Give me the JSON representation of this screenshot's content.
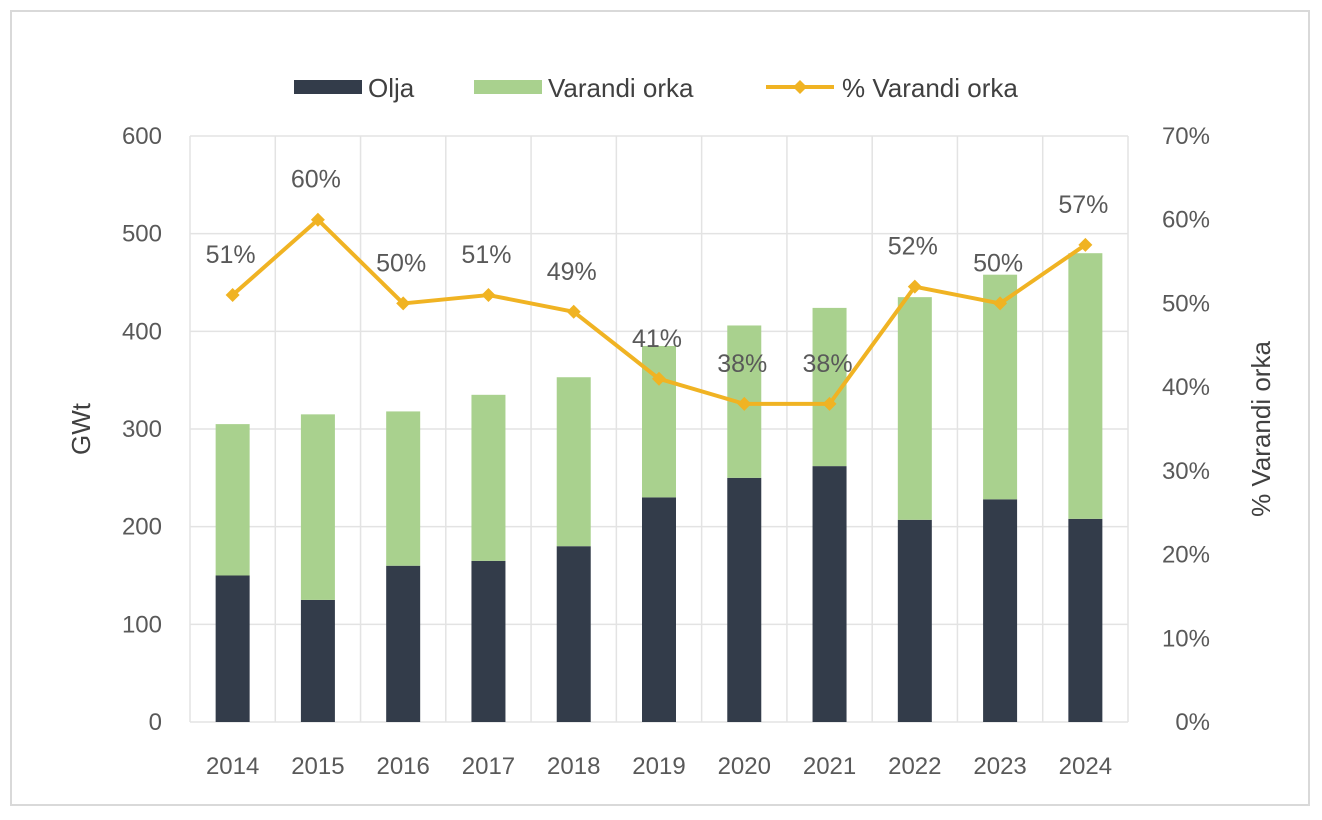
{
  "chart_data": {
    "type": "bar",
    "stacked": true,
    "categories": [
      "2014",
      "2015",
      "2016",
      "2017",
      "2018",
      "2019",
      "2020",
      "2021",
      "2022",
      "2023",
      "2024"
    ],
    "series": [
      {
        "name": "Olja",
        "type": "bar",
        "axis": "left",
        "color": "#333c4a",
        "values": [
          150,
          125,
          160,
          165,
          180,
          230,
          250,
          262,
          207,
          228,
          208
        ]
      },
      {
        "name": "Varandi orka",
        "type": "bar",
        "axis": "left",
        "color": "#a9d18e",
        "values": [
          155,
          190,
          158,
          170,
          173,
          155,
          156,
          162,
          228,
          230,
          272
        ]
      },
      {
        "name": "% Varandi orka",
        "type": "line",
        "axis": "right",
        "color": "#f0b323",
        "values": [
          51,
          60,
          50,
          51,
          49,
          41,
          38,
          38,
          52,
          50,
          57
        ],
        "labels": [
          "51%",
          "60%",
          "50%",
          "51%",
          "49%",
          "41%",
          "38%",
          "38%",
          "52%",
          "50%",
          "57%"
        ]
      }
    ],
    "ylabel": "GWt",
    "y2label": "% Varandi orka",
    "ylim": [
      0,
      600
    ],
    "y2lim": [
      0,
      70
    ],
    "yticks": [
      "0",
      "100",
      "200",
      "300",
      "400",
      "500",
      "600"
    ],
    "y2ticks": [
      "0%",
      "10%",
      "20%",
      "30%",
      "40%",
      "50%",
      "60%",
      "70%"
    ],
    "grid": true,
    "legend": "top-center"
  }
}
